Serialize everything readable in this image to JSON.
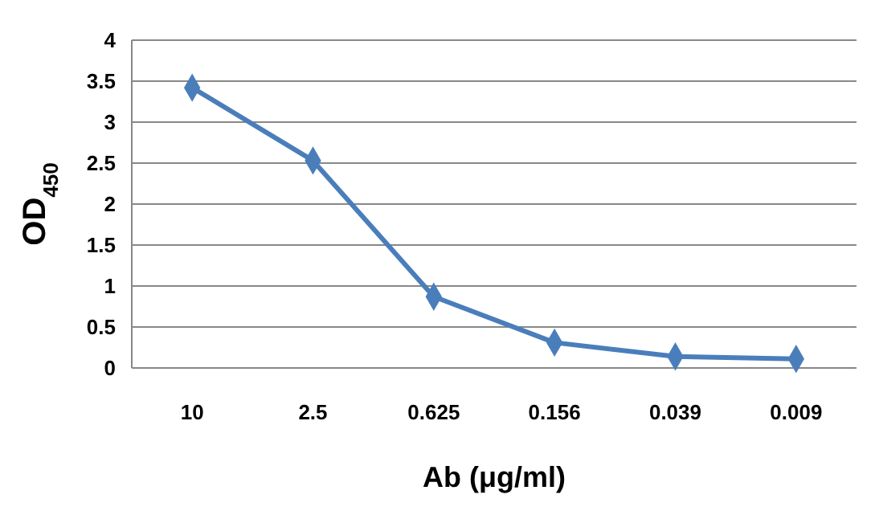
{
  "chart_data": {
    "type": "line",
    "xlabel": "Ab (μg/ml)",
    "ylabel": "OD$_{450}$",
    "categories": [
      "10",
      "2.5",
      "0.625",
      "0.156",
      "0.039",
      "0.009"
    ],
    "series": [
      {
        "color": "#4a7ebb",
        "values": [
          3.42,
          2.53,
          0.87,
          0.31,
          0.14,
          0.11
        ]
      }
    ],
    "ylim": [
      0,
      4
    ],
    "yticks": [
      0,
      0.5,
      1,
      1.5,
      2,
      2.5,
      3,
      3.5,
      4
    ],
    "grid": "y",
    "marker": "diamond",
    "line_style": "solid"
  }
}
